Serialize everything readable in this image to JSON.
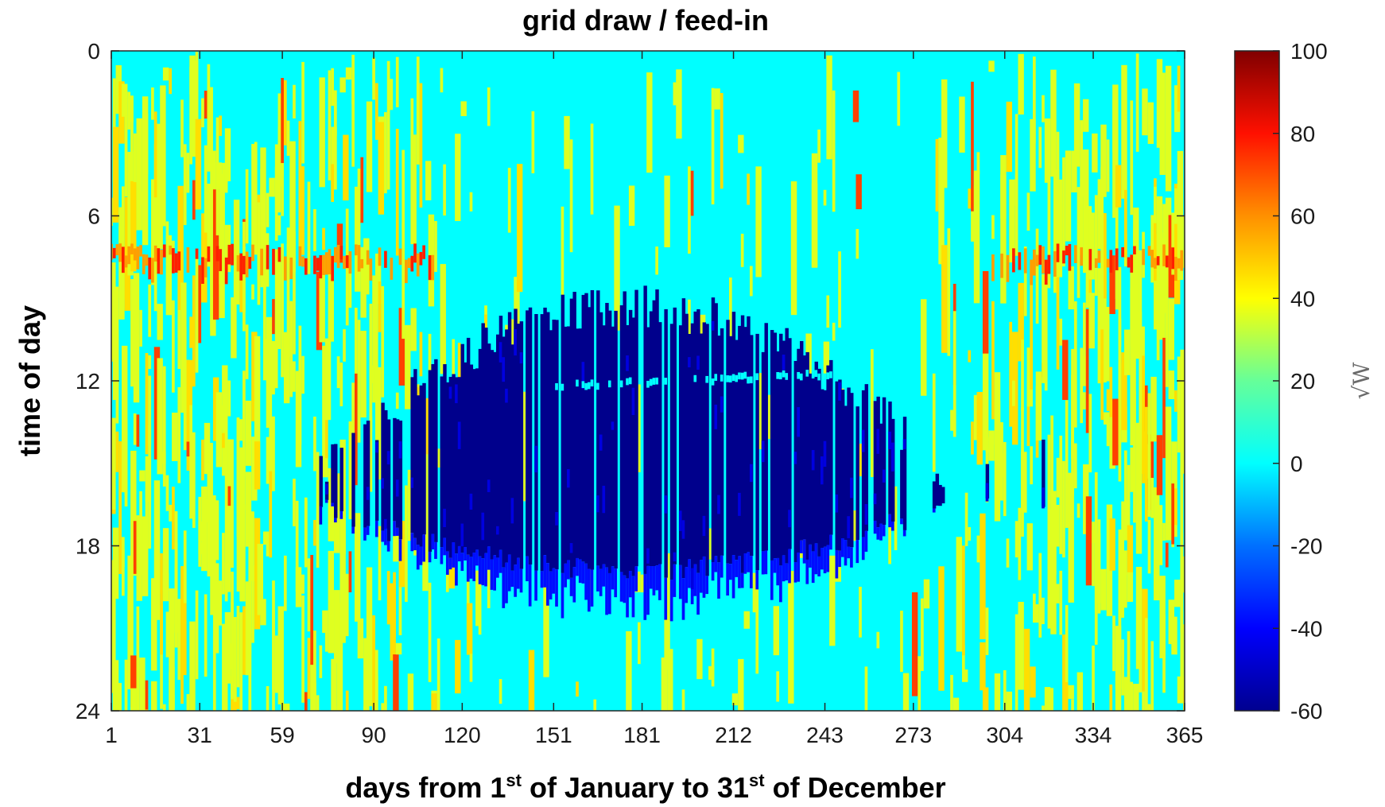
{
  "chart_data": {
    "type": "heatmap",
    "title": "grid draw / feed-in",
    "xlabel": {
      "prefix": "days from 1",
      "sup1": "st",
      "middle": " of January to 31",
      "sup2": "st",
      "suffix": " of December"
    },
    "ylabel": "time of day",
    "x_ticks": [
      1,
      31,
      59,
      90,
      120,
      151,
      181,
      212,
      243,
      273,
      304,
      334,
      365
    ],
    "y_ticks": [
      0,
      6,
      12,
      18,
      24
    ],
    "xlim": [
      1,
      365
    ],
    "ylim": [
      0,
      24
    ],
    "y_reversed": true,
    "grid": false,
    "colormap": "jet",
    "colorbar": {
      "ticks": [
        100,
        80,
        60,
        40,
        20,
        0,
        -20,
        -40,
        -60
      ],
      "range": [
        -60,
        100
      ],
      "unit_label": "√W",
      "placement": "right"
    },
    "background_value": 0,
    "feed_in_region": {
      "day_range": [
        70,
        285
      ],
      "hour_range_core": [
        8.5,
        18.5
      ],
      "hour_range_max": [
        8.4,
        20.0
      ],
      "value_core": -58,
      "value_edge": -38
    },
    "draw_regions": [
      {
        "day_range": [
          1,
          120
        ],
        "hour_range": [
          0,
          24
        ],
        "value": 35
      },
      {
        "day_range": [
          290,
          365
        ],
        "hour_range": [
          0,
          24
        ],
        "value": 35
      },
      {
        "day_range": [
          1,
          365
        ],
        "hour_range": [
          7,
          8
        ],
        "value": 55
      }
    ]
  }
}
